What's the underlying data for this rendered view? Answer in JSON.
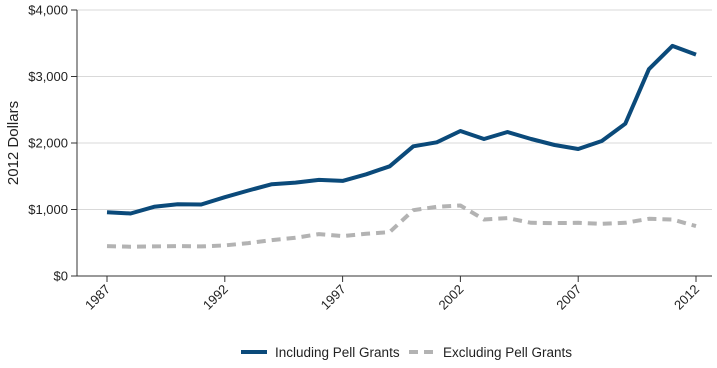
{
  "chart_data": {
    "type": "line",
    "ylabel": "2012 Dollars",
    "xlabel": "",
    "x": [
      1987,
      1988,
      1989,
      1990,
      1991,
      1992,
      1993,
      1994,
      1995,
      1996,
      1997,
      1998,
      1999,
      2000,
      2001,
      2002,
      2003,
      2004,
      2005,
      2006,
      2007,
      2008,
      2009,
      2010,
      2011,
      2012
    ],
    "xticks": [
      1987,
      1992,
      1997,
      2002,
      2007,
      2012
    ],
    "xtick_labels": [
      "1987",
      "1992",
      "1997",
      "2002",
      "2007",
      "2012"
    ],
    "xlim": [
      1987,
      2012
    ],
    "ylim": [
      0,
      4000
    ],
    "yticks": [
      0,
      1000,
      2000,
      3000,
      4000
    ],
    "ytick_labels": [
      "$0",
      "$1,000",
      "$2,000",
      "$3,000",
      "$4,000"
    ],
    "grid": "horizontal",
    "legend_position": "bottom",
    "series": [
      {
        "name": "Including Pell Grants",
        "color": "#0b4a7a",
        "dash": "solid",
        "values": [
          960,
          940,
          1040,
          1080,
          1075,
          1185,
          1285,
          1380,
          1405,
          1445,
          1430,
          1530,
          1650,
          1950,
          2010,
          2180,
          2060,
          2165,
          2060,
          1970,
          1910,
          2030,
          2290,
          3110,
          3460,
          3330
        ]
      },
      {
        "name": "Excluding Pell Grants",
        "color": "#b3b3b3",
        "dash": "dashed",
        "values": [
          450,
          440,
          445,
          450,
          445,
          460,
          495,
          540,
          575,
          630,
          600,
          635,
          660,
          990,
          1040,
          1060,
          850,
          870,
          800,
          795,
          800,
          785,
          800,
          860,
          850,
          750
        ]
      }
    ]
  }
}
